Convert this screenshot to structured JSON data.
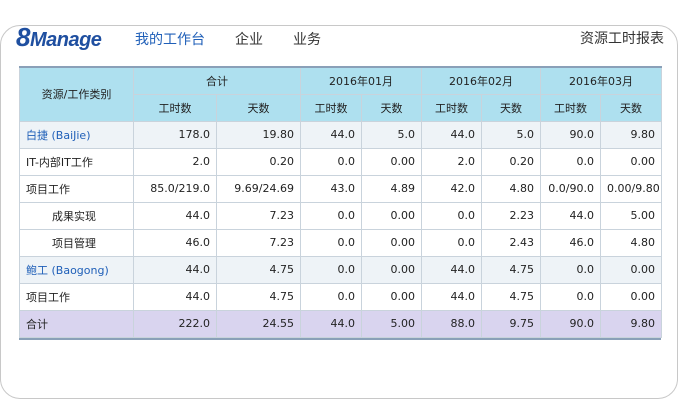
{
  "brand": {
    "logo_num": "8",
    "logo_text": "Manage"
  },
  "nav": {
    "items": [
      {
        "label": "我的工作台",
        "active": true
      },
      {
        "label": "企业",
        "active": false
      },
      {
        "label": "业务",
        "active": false
      }
    ]
  },
  "report_title": "资源工时报表",
  "table": {
    "col_category": "资源/工作类别",
    "groups": [
      "合计",
      "2016年01月",
      "2016年02月",
      "2016年03月"
    ],
    "sub_hours": "工时数",
    "sub_days": "天数",
    "rows": [
      {
        "type": "group",
        "category": "白捷 (BaiJie)",
        "cells": [
          "178.0",
          "19.80",
          "44.0",
          "5.0",
          "44.0",
          "5.0",
          "90.0",
          "9.80"
        ]
      },
      {
        "type": "normal",
        "category": "IT-内部IT工作",
        "cells": [
          "2.0",
          "0.20",
          "0.0",
          "0.00",
          "2.0",
          "0.20",
          "0.0",
          "0.00"
        ]
      },
      {
        "type": "normal",
        "category": "项目工作",
        "cells": [
          "85.0/219.0",
          "9.69/24.69",
          "43.0",
          "4.89",
          "42.0",
          "4.80",
          "0.0/90.0",
          "0.00/9.80"
        ]
      },
      {
        "type": "sub",
        "category": "成果实现",
        "cells": [
          "44.0",
          "7.23",
          "0.0",
          "0.00",
          "0.0",
          "2.23",
          "44.0",
          "5.00"
        ]
      },
      {
        "type": "sub",
        "category": "项目管理",
        "cells": [
          "46.0",
          "7.23",
          "0.0",
          "0.00",
          "0.0",
          "2.43",
          "46.0",
          "4.80"
        ]
      },
      {
        "type": "group",
        "category": "鲍工 (Baogong)",
        "cells": [
          "44.0",
          "4.75",
          "0.0",
          "0.00",
          "44.0",
          "4.75",
          "0.0",
          "0.00"
        ]
      },
      {
        "type": "normal",
        "category": "项目工作",
        "cells": [
          "44.0",
          "4.75",
          "0.0",
          "0.00",
          "44.0",
          "4.75",
          "0.0",
          "0.00"
        ]
      },
      {
        "type": "total",
        "category": "合计",
        "cells": [
          "222.0",
          "24.55",
          "44.0",
          "5.00",
          "88.0",
          "9.75",
          "90.0",
          "9.80"
        ]
      }
    ]
  }
}
